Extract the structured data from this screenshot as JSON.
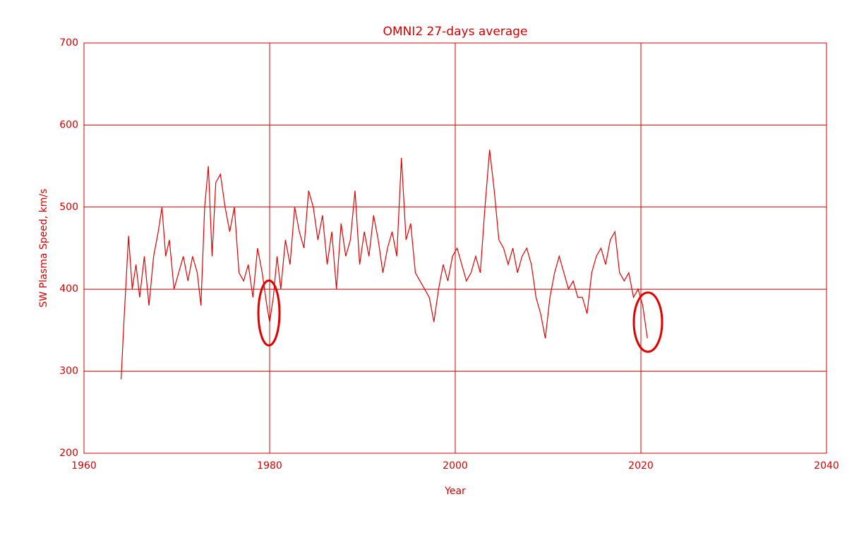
{
  "chart_data": {
    "type": "line",
    "title": "OMNI2 27-days average",
    "x_label": "Year",
    "y_label": "SW Plasma Speed, km/s",
    "x": [
      1964.0,
      1964.3,
      1964.8,
      1965.2,
      1965.6,
      1966.0,
      1966.5,
      1967.0,
      1967.5,
      1968.0,
      1968.4,
      1968.8,
      1969.2,
      1969.7,
      1970.2,
      1970.7,
      1971.2,
      1971.7,
      1972.2,
      1972.6,
      1973.0,
      1973.4,
      1973.8,
      1974.2,
      1974.7,
      1975.2,
      1975.7,
      1976.2,
      1976.7,
      1977.2,
      1977.7,
      1978.2,
      1978.7,
      1979.2,
      1979.7,
      1980.0,
      1980.4,
      1980.8,
      1981.2,
      1981.7,
      1982.2,
      1982.7,
      1983.2,
      1983.7,
      1984.2,
      1984.7,
      1985.2,
      1985.7,
      1986.2,
      1986.7,
      1987.2,
      1987.7,
      1988.2,
      1988.7,
      1989.2,
      1989.7,
      1990.2,
      1990.7,
      1991.2,
      1991.7,
      1992.2,
      1992.7,
      1993.2,
      1993.7,
      1994.2,
      1994.7,
      1995.2,
      1995.7,
      1996.2,
      1996.7,
      1997.2,
      1997.7,
      1998.2,
      1998.7,
      1999.2,
      1999.7,
      2000.2,
      2000.7,
      2001.2,
      2001.7,
      2002.2,
      2002.7,
      2003.2,
      2003.7,
      2004.2,
      2004.7,
      2005.2,
      2005.7,
      2006.2,
      2006.7,
      2007.2,
      2007.7,
      2008.2,
      2008.7,
      2009.2,
      2009.7,
      2010.2,
      2010.7,
      2011.2,
      2011.7,
      2012.2,
      2012.7,
      2013.2,
      2013.7,
      2014.2,
      2014.7,
      2015.2,
      2015.7,
      2016.2,
      2016.7,
      2017.2,
      2017.7,
      2018.2,
      2018.7,
      2019.2,
      2019.7,
      2020.2,
      2020.7
    ],
    "series": [
      {
        "color": "#e00000",
        "values": [
          290,
          360,
          465,
          400,
          430,
          390,
          440,
          380,
          440,
          470,
          500,
          440,
          460,
          400,
          420,
          440,
          410,
          440,
          420,
          380,
          500,
          550,
          440,
          530,
          540,
          500,
          470,
          500,
          420,
          410,
          430,
          390,
          450,
          420,
          380,
          360,
          390,
          440,
          400,
          460,
          430,
          500,
          470,
          450,
          520,
          500,
          460,
          490,
          430,
          470,
          400,
          480,
          440,
          460,
          520,
          430,
          470,
          440,
          490,
          460,
          420,
          450,
          470,
          440,
          560,
          460,
          480,
          420,
          410,
          400,
          390,
          360,
          400,
          430,
          410,
          440,
          450,
          430,
          410,
          420,
          440,
          420,
          500,
          570,
          520,
          460,
          450,
          430,
          450,
          420,
          440,
          450,
          430,
          390,
          370,
          340,
          390,
          420,
          440,
          420,
          400,
          410,
          390,
          390,
          370,
          420,
          440,
          450,
          430,
          460,
          470,
          420,
          410,
          420,
          390,
          400,
          380,
          340
        ]
      }
    ],
    "xlim": [
      1960,
      2040
    ],
    "xticks": [
      1960,
      1980,
      2000,
      2020,
      2040
    ],
    "ylim": [
      200,
      700
    ],
    "yticks": [
      200,
      300,
      400,
      500,
      600,
      700
    ],
    "grid": true
  }
}
